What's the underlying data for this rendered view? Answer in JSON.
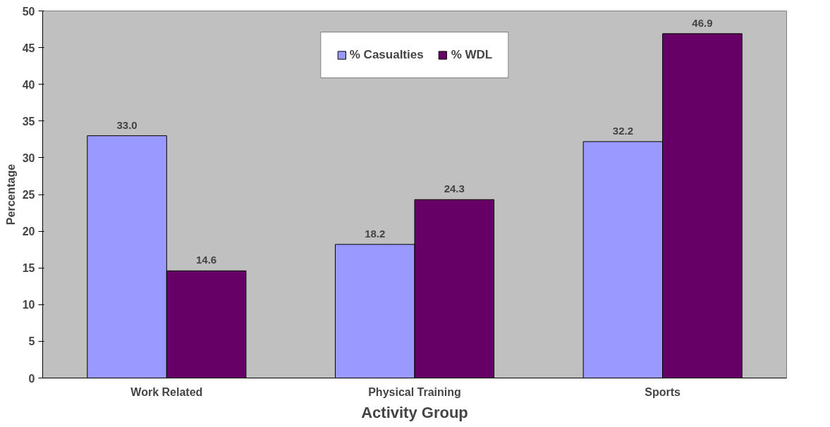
{
  "chart_data": {
    "type": "bar",
    "xlabel": "Activity Group",
    "ylabel": "Percentage",
    "categories": [
      "Work Related",
      "Physical Training",
      "Sports"
    ],
    "series": [
      {
        "name": "% Casualties",
        "color": "#9999ff",
        "values": [
          33.0,
          18.2,
          32.2
        ],
        "value_labels": [
          "33.0",
          "18.2",
          "32.2"
        ]
      },
      {
        "name": "% WDL",
        "color": "#660066",
        "values": [
          14.6,
          24.3,
          46.9
        ],
        "value_labels": [
          "14.6",
          "24.3",
          "46.9"
        ]
      }
    ],
    "ylim": [
      0,
      50
    ],
    "yticks": [
      0,
      5,
      10,
      15,
      20,
      25,
      30,
      35,
      40,
      45,
      50
    ],
    "legend": "top",
    "grid": false
  }
}
